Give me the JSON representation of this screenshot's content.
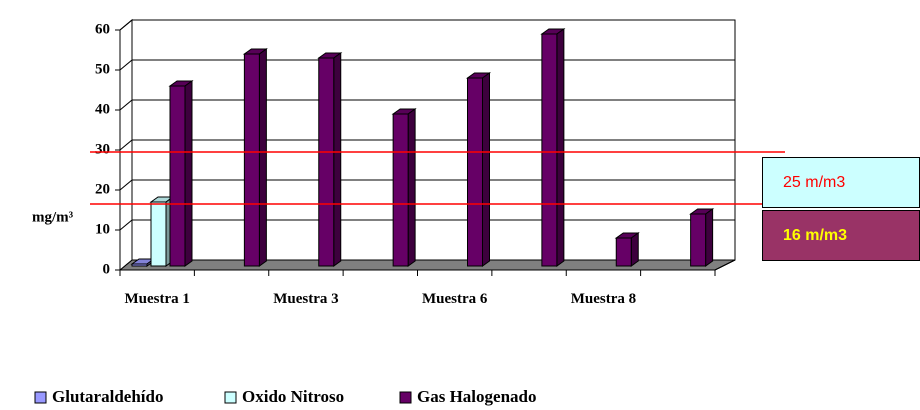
{
  "chart_data": {
    "type": "bar",
    "y_label": "mg/m³",
    "categories": [
      "Muestra 1",
      null,
      "Muestra 3",
      null,
      "Muestra 6",
      null,
      "Muestra 8",
      null
    ],
    "series": [
      {
        "name": "Glutaraldehído",
        "color": "#9999ff",
        "values": [
          0.5,
          null,
          null,
          null,
          null,
          null,
          null,
          null
        ]
      },
      {
        "name": "Oxido Nitroso",
        "color": "#ccffff",
        "values": [
          16,
          null,
          null,
          null,
          null,
          null,
          null,
          null
        ]
      },
      {
        "name": "Gas Halogenado",
        "color": "#660066",
        "values": [
          45,
          53,
          52,
          38,
          47,
          58,
          7,
          13
        ]
      }
    ],
    "ylim": [
      0,
      60
    ],
    "yticks": [
      0,
      10,
      20,
      30,
      40,
      50,
      60
    ],
    "grid": true,
    "reference_lines": [
      {
        "value": 27,
        "color": "#ff0000"
      },
      {
        "value": 14,
        "color": "#ff0000"
      }
    ],
    "annotations": [
      "25 m/m3",
      "16 m/m3"
    ]
  }
}
